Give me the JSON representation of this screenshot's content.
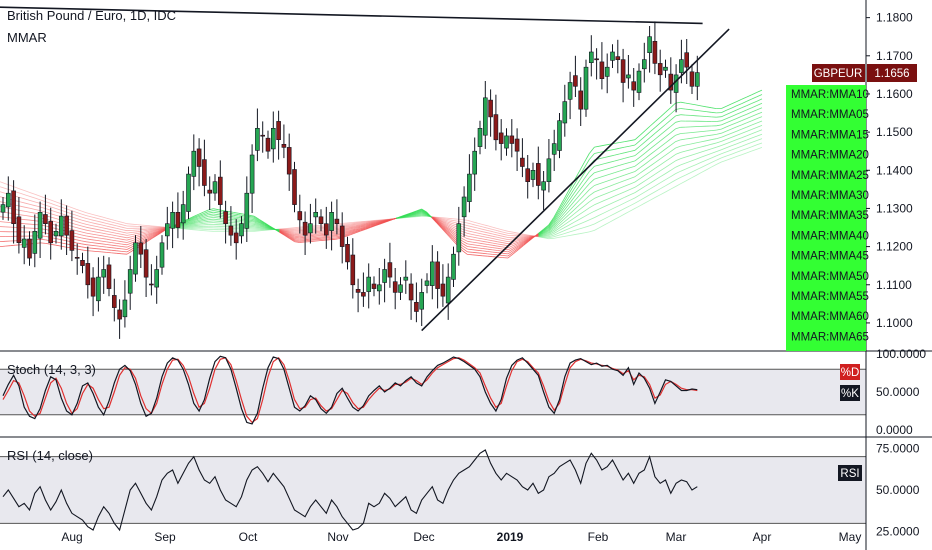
{
  "title": "British Pound / Euro, 1D, IDC",
  "indicator_label": "MMAR",
  "price_tag": {
    "symbol": "GBPEUR",
    "value": "1.1656",
    "color": "#7a1010"
  },
  "ma_labels": [
    "MMAR:MMA10",
    "MMAR:MMA05",
    "MMAR:MMA15",
    "MMAR:MMA20",
    "MMAR:MMA25",
    "MMAR:MMA30",
    "MMAR:MMA35",
    "MMAR:MMA40",
    "MMAR:MMA45",
    "MMAR:MMA50",
    "MMAR:MMA55",
    "MMAR:MMA60",
    "MMAR:MMA65"
  ],
  "ma_label_color": "#33ff33",
  "stoch": {
    "title": "Stoch (14, 3, 3)",
    "ticks": [
      "100.0000",
      "50.0000",
      "0.0000"
    ],
    "tags": [
      "%D",
      "%K"
    ],
    "d_color": "#e03030",
    "k_color": "#131722"
  },
  "rsi": {
    "title": "RSI (14, close)",
    "ticks": [
      "75.0000",
      "50.0000",
      "25.0000"
    ],
    "tag": "RSI"
  },
  "colors": {
    "up": "#26a653",
    "down": "#8b1a1a",
    "ribbon_bear": "#f05050",
    "ribbon_bull": "#33dd55"
  },
  "chart_data": {
    "type": "candlestick",
    "x_labels": [
      "Aug",
      "Sep",
      "Oct",
      "Nov",
      "Dec",
      "2019",
      "Feb",
      "Mar",
      "Apr",
      "May"
    ],
    "y_ticks": [
      "1.1800",
      "1.1700",
      "1.1600",
      "1.1500",
      "1.1400",
      "1.1300",
      "1.1200",
      "1.1100",
      "1.1000"
    ],
    "ylim": [
      1.095,
      1.182
    ],
    "close_series": [
      1.131,
      1.134,
      1.126,
      1.121,
      1.122,
      1.117,
      1.124,
      1.129,
      1.126,
      1.121,
      1.124,
      1.128,
      1.123,
      1.119,
      1.117,
      1.115,
      1.11,
      1.107,
      1.112,
      1.114,
      1.109,
      1.104,
      1.101,
      1.106,
      1.114,
      1.121,
      1.118,
      1.112,
      1.11,
      1.114,
      1.121,
      1.126,
      1.129,
      1.125,
      1.131,
      1.139,
      1.145,
      1.141,
      1.136,
      1.134,
      1.137,
      1.131,
      1.126,
      1.123,
      1.121,
      1.126,
      1.134,
      1.144,
      1.151,
      1.149,
      1.145,
      1.151,
      1.148,
      1.146,
      1.139,
      1.131,
      1.127,
      1.123,
      1.126,
      1.129,
      1.126,
      1.123,
      1.129,
      1.126,
      1.12,
      1.116,
      1.11,
      1.108,
      1.107,
      1.112,
      1.109,
      1.11,
      1.114,
      1.112,
      1.108,
      1.11,
      1.112,
      1.106,
      1.103,
      1.108,
      1.111,
      1.116,
      1.109,
      1.107,
      1.112,
      1.118,
      1.126,
      1.133,
      1.139,
      1.145,
      1.151,
      1.159,
      1.154,
      1.148,
      1.147,
      1.149,
      1.147,
      1.145,
      1.141,
      1.137,
      1.14,
      1.136,
      1.137,
      1.143,
      1.147,
      1.153,
      1.158,
      1.163,
      1.162,
      1.156,
      1.167,
      1.171,
      1.169,
      1.164,
      1.167,
      1.171,
      1.169,
      1.163,
      1.165,
      1.161,
      1.166,
      1.169,
      1.175,
      1.168,
      1.165,
      1.167,
      1.161,
      1.165,
      1.169,
      1.167,
      1.162,
      1.1656
    ],
    "ribbon_fast": [
      1.12,
      1.121,
      1.119,
      1.118,
      1.125,
      1.13,
      1.128,
      1.121,
      1.122,
      1.126,
      1.13,
      1.118,
      1.117,
      1.126,
      1.146,
      1.148,
      1.158,
      1.156,
      1.161
    ],
    "ribbon_slow": [
      1.137,
      1.133,
      1.129,
      1.126,
      1.125,
      1.124,
      1.124,
      1.125,
      1.126,
      1.127,
      1.128,
      1.127,
      1.124,
      1.122,
      1.124,
      1.13,
      1.136,
      1.142,
      1.146
    ],
    "trendlines": [
      {
        "name": "upper",
        "from": [
          -40,
          1.184
        ],
        "to": [
          132,
          1.1785
        ]
      },
      {
        "name": "lower",
        "from": [
          79,
          1.098
        ],
        "to": [
          137,
          1.177
        ]
      }
    ],
    "stoch_k": [
      45,
      60,
      72,
      58,
      30,
      18,
      15,
      28,
      52,
      70,
      66,
      42,
      25,
      20,
      35,
      58,
      62,
      48,
      30,
      20,
      38,
      62,
      80,
      85,
      78,
      60,
      35,
      18,
      22,
      42,
      70,
      88,
      95,
      92,
      80,
      60,
      35,
      25,
      40,
      68,
      90,
      97,
      95,
      80,
      55,
      28,
      10,
      8,
      22,
      55,
      82,
      96,
      94,
      80,
      55,
      30,
      25,
      32,
      45,
      40,
      28,
      22,
      30,
      48,
      55,
      42,
      30,
      25,
      32,
      45,
      52,
      58,
      50,
      55,
      62,
      58,
      65,
      70,
      62,
      58,
      70,
      78,
      85,
      88,
      92,
      96,
      94,
      90,
      85,
      80,
      70,
      50,
      35,
      25,
      40,
      68,
      85,
      92,
      95,
      88,
      80,
      72,
      50,
      30,
      22,
      40,
      70,
      88,
      92,
      94,
      90,
      86,
      88,
      84,
      85,
      80,
      78,
      72,
      82,
      60,
      75,
      68,
      55,
      35,
      50,
      66,
      64,
      58,
      52,
      52,
      54,
      53
    ],
    "stoch_d": [
      40,
      52,
      65,
      62,
      45,
      25,
      18,
      22,
      42,
      62,
      68,
      55,
      35,
      22,
      28,
      48,
      60,
      55,
      40,
      28,
      30,
      50,
      72,
      82,
      80,
      68,
      45,
      28,
      22,
      35,
      60,
      80,
      92,
      93,
      85,
      70,
      48,
      30,
      35,
      55,
      80,
      93,
      95,
      86,
      65,
      40,
      18,
      10,
      15,
      40,
      70,
      90,
      95,
      86,
      65,
      40,
      28,
      30,
      40,
      42,
      32,
      25,
      28,
      40,
      52,
      48,
      36,
      28,
      30,
      40,
      48,
      55,
      52,
      54,
      60,
      60,
      63,
      68,
      65,
      60,
      66,
      75,
      82,
      86,
      90,
      94,
      95,
      92,
      87,
      82,
      75,
      58,
      42,
      30,
      35,
      58,
      78,
      90,
      93,
      90,
      82,
      75,
      58,
      38,
      26,
      35,
      60,
      82,
      90,
      93,
      91,
      88,
      87,
      85,
      84,
      81,
      79,
      74,
      78,
      66,
      72,
      70,
      60,
      42,
      46,
      60,
      64,
      60,
      55,
      53,
      53,
      52
    ],
    "rsi": [
      46,
      50,
      45,
      40,
      42,
      38,
      48,
      52,
      44,
      38,
      43,
      50,
      42,
      36,
      34,
      32,
      28,
      26,
      34,
      40,
      36,
      30,
      26,
      38,
      50,
      54,
      48,
      42,
      38,
      46,
      56,
      60,
      62,
      54,
      60,
      66,
      70,
      62,
      56,
      54,
      58,
      50,
      44,
      42,
      40,
      46,
      56,
      62,
      64,
      60,
      55,
      60,
      56,
      52,
      45,
      38,
      36,
      34,
      40,
      44,
      40,
      36,
      44,
      40,
      34,
      30,
      26,
      27,
      30,
      42,
      40,
      42,
      48,
      45,
      40,
      43,
      46,
      38,
      36,
      44,
      48,
      52,
      44,
      42,
      50,
      56,
      60,
      62,
      64,
      68,
      72,
      74,
      66,
      60,
      56,
      60,
      58,
      56,
      52,
      50,
      54,
      48,
      50,
      58,
      60,
      64,
      66,
      68,
      62,
      54,
      66,
      72,
      68,
      62,
      64,
      68,
      62,
      56,
      60,
      54,
      60,
      62,
      70,
      58,
      54,
      56,
      48,
      54,
      56,
      55,
      50,
      52
    ]
  }
}
